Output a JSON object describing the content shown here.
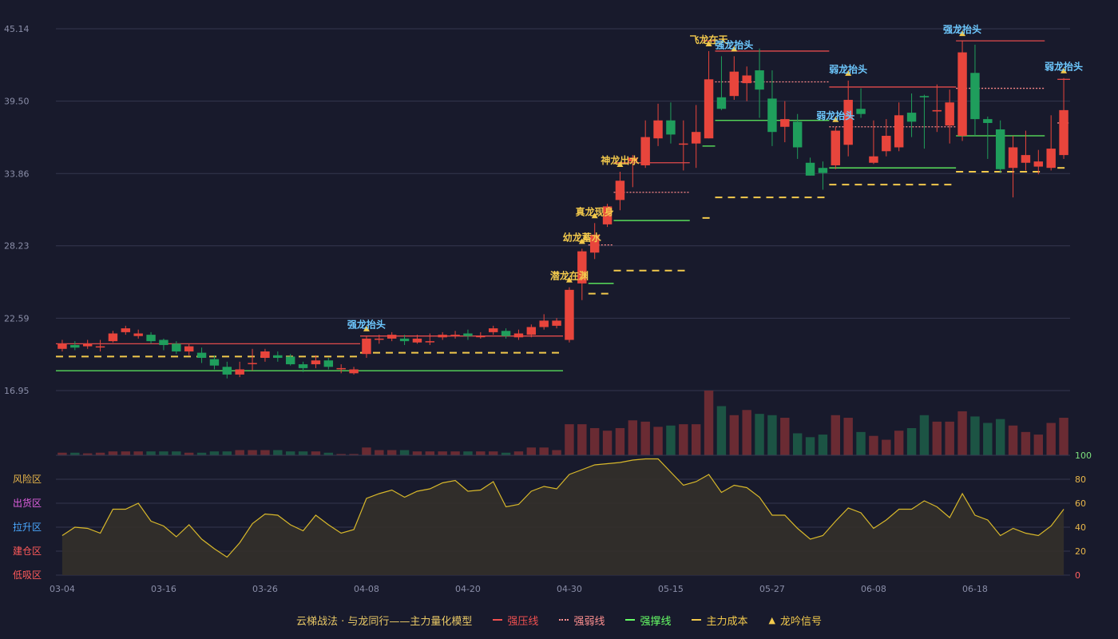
{
  "chart_data": {
    "type": "candlestick",
    "price_axis": {
      "ticks": [
        "45.14",
        "39.50",
        "33.86",
        "28.23",
        "22.59",
        "16.95"
      ],
      "range": [
        16.95,
        45.14
      ]
    },
    "osc_axis": {
      "ticks": [
        "100",
        "80",
        "60",
        "40",
        "20",
        "0"
      ],
      "range": [
        0,
        100
      ]
    },
    "zones": [
      {
        "label": "风险区",
        "color": "#e8b64a"
      },
      {
        "label": "出货区",
        "color": "#e060e0"
      },
      {
        "label": "拉升区",
        "color": "#4aa8ff"
      },
      {
        "label": "建仓区",
        "color": "#ff5a5a"
      },
      {
        "label": "低吸区",
        "color": "#ff5a5a"
      }
    ],
    "x_ticks": [
      {
        "i": 0,
        "label": "03-04"
      },
      {
        "i": 8,
        "label": "03-16"
      },
      {
        "i": 16,
        "label": "03-26"
      },
      {
        "i": 24,
        "label": "04-08"
      },
      {
        "i": 32,
        "label": "04-20"
      },
      {
        "i": 40,
        "label": "04-30"
      },
      {
        "i": 48,
        "label": "05-15"
      },
      {
        "i": 56,
        "label": "05-27"
      },
      {
        "i": 64,
        "label": "06-08"
      },
      {
        "i": 72,
        "label": "06-18"
      }
    ],
    "candles": [
      [
        20.2,
        20.6,
        20.9,
        20.0
      ],
      [
        20.5,
        20.3,
        20.8,
        20.1
      ],
      [
        20.4,
        20.6,
        20.9,
        20.2
      ],
      [
        20.4,
        20.4,
        20.9,
        20.0
      ],
      [
        20.8,
        21.4,
        21.6,
        20.7
      ],
      [
        21.5,
        21.8,
        22.0,
        21.3
      ],
      [
        21.2,
        21.4,
        21.7,
        21.0
      ],
      [
        21.3,
        20.8,
        21.5,
        20.6
      ],
      [
        20.9,
        20.5,
        21.0,
        20.1
      ],
      [
        20.6,
        20.0,
        20.8,
        19.8
      ],
      [
        20.0,
        20.4,
        20.6,
        19.7
      ],
      [
        19.9,
        19.5,
        20.3,
        19.1
      ],
      [
        19.4,
        18.9,
        19.7,
        18.6
      ],
      [
        18.8,
        18.2,
        19.2,
        17.9
      ],
      [
        18.2,
        18.6,
        19.2,
        18.0
      ],
      [
        19.1,
        19.1,
        20.2,
        18.5
      ],
      [
        19.5,
        20.0,
        20.2,
        19.2
      ],
      [
        19.7,
        19.5,
        20.0,
        19.2
      ],
      [
        19.6,
        19.0,
        19.8,
        18.9
      ],
      [
        19.0,
        18.7,
        19.2,
        18.4
      ],
      [
        19.0,
        19.3,
        19.7,
        18.7
      ],
      [
        19.3,
        18.8,
        19.5,
        18.6
      ],
      [
        18.7,
        18.7,
        19.0,
        18.3
      ],
      [
        18.3,
        18.6,
        18.8,
        18.2
      ],
      [
        19.8,
        21.0,
        21.2,
        19.5
      ],
      [
        21.0,
        21.0,
        21.3,
        20.6
      ],
      [
        21.0,
        21.3,
        21.5,
        20.8
      ],
      [
        21.0,
        20.8,
        21.3,
        20.5
      ],
      [
        20.7,
        21.0,
        21.3,
        20.6
      ],
      [
        20.8,
        20.8,
        21.4,
        20.5
      ],
      [
        21.1,
        21.3,
        21.5,
        20.9
      ],
      [
        21.2,
        21.3,
        21.6,
        21.0
      ],
      [
        21.4,
        21.2,
        21.7,
        20.9
      ],
      [
        21.2,
        21.2,
        21.5,
        21.0
      ],
      [
        21.5,
        21.8,
        22.0,
        21.3
      ],
      [
        21.6,
        21.2,
        21.8,
        21.0
      ],
      [
        21.1,
        21.4,
        21.7,
        20.9
      ],
      [
        21.3,
        21.9,
        22.1,
        21.1
      ],
      [
        21.9,
        22.4,
        22.9,
        21.7
      ],
      [
        22.0,
        22.4,
        22.6,
        21.8
      ],
      [
        20.9,
        24.8,
        25.0,
        20.7
      ],
      [
        25.3,
        27.8,
        28.0,
        24.0
      ],
      [
        27.7,
        29.1,
        30.0,
        27.2
      ],
      [
        29.9,
        31.3,
        31.5,
        29.7
      ],
      [
        31.8,
        33.3,
        34.0,
        31.0
      ],
      [
        34.8,
        35.1,
        35.3,
        32.8
      ],
      [
        34.5,
        36.7,
        38.0,
        34.3
      ],
      [
        36.6,
        38.0,
        39.3,
        36.0
      ],
      [
        38.0,
        36.9,
        39.4,
        36.2
      ],
      [
        36.2,
        36.2,
        38.0,
        34.1
      ],
      [
        36.2,
        37.1,
        39.2,
        34.3
      ],
      [
        36.6,
        41.2,
        43.4,
        36.6
      ],
      [
        39.8,
        38.9,
        43.0,
        38.8
      ],
      [
        39.9,
        41.8,
        43.0,
        39.6
      ],
      [
        40.9,
        41.5,
        42.2,
        39.5
      ],
      [
        41.9,
        40.4,
        43.6,
        38.2
      ],
      [
        39.7,
        37.1,
        41.9,
        36.0
      ],
      [
        37.5,
        38.1,
        39.5,
        36.3
      ],
      [
        37.9,
        35.9,
        38.5,
        35.0
      ],
      [
        34.7,
        33.7,
        35.1,
        33.7
      ],
      [
        34.3,
        33.9,
        34.8,
        32.6
      ],
      [
        34.5,
        37.2,
        37.5,
        34.2
      ],
      [
        36.1,
        39.6,
        41.1,
        35.2
      ],
      [
        38.9,
        38.5,
        40.5,
        38.2
      ],
      [
        34.7,
        35.2,
        38.0,
        34.6
      ],
      [
        35.6,
        36.8,
        38.1,
        35.2
      ],
      [
        35.9,
        38.4,
        39.4,
        35.6
      ],
      [
        38.6,
        37.9,
        40.1,
        36.7
      ],
      [
        39.9,
        39.8,
        40.0,
        35.8
      ],
      [
        38.7,
        38.8,
        40.8,
        37.1
      ],
      [
        37.6,
        39.4,
        40.4,
        36.2
      ],
      [
        36.8,
        43.3,
        44.2,
        36.4
      ],
      [
        41.7,
        38.1,
        43.9,
        36.8
      ],
      [
        38.1,
        37.8,
        38.3,
        35.0
      ],
      [
        37.3,
        34.2,
        38.0,
        33.9
      ],
      [
        34.3,
        35.9,
        36.8,
        32.0
      ],
      [
        34.7,
        35.3,
        37.2,
        34.1
      ],
      [
        34.4,
        34.8,
        35.7,
        33.8
      ],
      [
        34.3,
        35.8,
        38.4,
        34.1
      ],
      [
        35.3,
        38.8,
        41.3,
        35.0
      ]
    ],
    "volume": [
      2,
      2,
      1.5,
      2,
      3,
      3,
      3,
      3,
      3,
      3,
      2,
      2,
      3,
      3,
      4,
      4,
      4,
      4,
      3,
      3,
      3,
      2,
      1,
      1,
      6,
      4,
      4,
      4,
      3,
      3,
      3,
      3,
      3,
      3,
      3,
      2,
      3,
      6,
      6,
      4,
      24,
      24,
      21,
      19,
      21,
      27,
      26,
      22,
      23,
      24,
      24,
      50,
      38,
      31,
      35,
      32,
      31,
      29,
      17,
      14,
      16,
      31,
      29,
      18,
      15,
      12,
      19,
      21,
      31,
      26,
      26,
      34,
      30,
      25,
      28,
      23,
      18,
      16,
      25,
      29
    ],
    "oscillator": [
      33,
      40,
      39,
      35,
      55,
      55,
      60,
      45,
      41,
      32,
      42,
      30,
      22,
      15,
      27,
      43,
      51,
      50,
      42,
      37,
      50,
      42,
      35,
      38,
      64,
      68,
      71,
      65,
      70,
      72,
      77,
      79,
      70,
      71,
      78,
      57,
      59,
      70,
      74,
      72,
      84,
      88,
      92,
      93,
      94,
      96,
      97,
      97,
      86,
      75,
      78,
      84,
      69,
      75,
      73,
      65,
      50,
      50,
      39,
      30,
      33,
      45,
      56,
      52,
      39,
      46,
      55,
      55,
      62,
      57,
      48,
      68,
      50,
      46,
      33,
      39,
      35,
      33,
      41,
      55
    ],
    "lines": [
      {
        "kind": "strong_pressure",
        "from": 0,
        "to": 23,
        "price": 20.6
      },
      {
        "kind": "main_cost",
        "from": 0,
        "to": 23,
        "price": 19.6
      },
      {
        "kind": "strong_support",
        "from": 0,
        "to": 23,
        "price": 18.5
      },
      {
        "kind": "strong_pressure",
        "from": 24,
        "to": 39,
        "price": 21.2
      },
      {
        "kind": "main_cost",
        "from": 24,
        "to": 39,
        "price": 19.9
      },
      {
        "kind": "strong_support",
        "from": 24,
        "to": 39,
        "price": 18.5
      },
      {
        "kind": "strong_weak",
        "from": 42,
        "to": 43,
        "price": 28.3
      },
      {
        "kind": "strong_support",
        "from": 42,
        "to": 43,
        "price": 25.3
      },
      {
        "kind": "main_cost",
        "from": 42,
        "to": 43,
        "price": 24.5
      },
      {
        "kind": "strong_pressure",
        "from": 44,
        "to": 49,
        "price": 34.7
      },
      {
        "kind": "strong_weak",
        "from": 44,
        "to": 49,
        "price": 32.4
      },
      {
        "kind": "strong_support",
        "from": 44,
        "to": 49,
        "price": 30.2
      },
      {
        "kind": "main_cost",
        "from": 44,
        "to": 49,
        "price": 26.3
      },
      {
        "kind": "strong_pressure",
        "from": 51,
        "to": 51,
        "price": 44.2
      },
      {
        "kind": "strong_support",
        "from": 51,
        "to": 51,
        "price": 36.0
      },
      {
        "kind": "main_cost",
        "from": 51,
        "to": 51,
        "price": 30.4
      },
      {
        "kind": "strong_pressure",
        "from": 52,
        "to": 60,
        "price": 43.4
      },
      {
        "kind": "strong_weak",
        "from": 52,
        "to": 60,
        "price": 41.0
      },
      {
        "kind": "strong_support",
        "from": 52,
        "to": 60,
        "price": 38.0
      },
      {
        "kind": "main_cost",
        "from": 52,
        "to": 60,
        "price": 32.0
      },
      {
        "kind": "strong_pressure",
        "from": 61,
        "to": 70,
        "price": 40.6
      },
      {
        "kind": "strong_weak",
        "from": 61,
        "to": 70,
        "price": 37.5
      },
      {
        "kind": "strong_support",
        "from": 61,
        "to": 70,
        "price": 34.3
      },
      {
        "kind": "main_cost",
        "from": 61,
        "to": 70,
        "price": 33.0
      },
      {
        "kind": "strong_pressure",
        "from": 71,
        "to": 77,
        "price": 44.2
      },
      {
        "kind": "strong_weak",
        "from": 71,
        "to": 77,
        "price": 40.5
      },
      {
        "kind": "strong_support",
        "from": 71,
        "to": 77,
        "price": 36.8
      },
      {
        "kind": "main_cost",
        "from": 71,
        "to": 77,
        "price": 34.0
      },
      {
        "kind": "strong_pressure",
        "from": 79,
        "to": 79,
        "price": 41.2
      },
      {
        "kind": "strong_weak",
        "from": 79,
        "to": 79,
        "price": 37.8
      },
      {
        "kind": "main_cost",
        "from": 79,
        "to": 79,
        "price": 34.3
      }
    ],
    "signals": [
      {
        "i": 24,
        "text": "强龙抬头",
        "color": "#6ec9ff"
      },
      {
        "i": 40,
        "text": "潜龙在渊",
        "color": "#f2c94c"
      },
      {
        "i": 41,
        "text": "幼龙蓄水",
        "color": "#f2c94c"
      },
      {
        "i": 42,
        "text": "真龙现身",
        "color": "#f2c94c"
      },
      {
        "i": 44,
        "text": "神龙出水",
        "color": "#f2c94c"
      },
      {
        "i": 51,
        "text": "飞龙在天",
        "color": "#f2c94c"
      },
      {
        "i": 53,
        "text": "强龙抬头",
        "color": "#6ec9ff"
      },
      {
        "i": 61,
        "text": "弱龙抬头",
        "color": "#6ec9ff"
      },
      {
        "i": 62,
        "text": "弱龙抬头",
        "color": "#6ec9ff"
      },
      {
        "i": 71,
        "text": "强龙抬头",
        "color": "#6ec9ff"
      },
      {
        "i": 79,
        "text": "弱龙抬头",
        "color": "#6ec9ff"
      }
    ],
    "legend": {
      "title": "云梯战法 · 与龙同行——主力量化模型",
      "items": [
        {
          "label": "强压线",
          "color": "#f05050",
          "kind": "strong_pressure"
        },
        {
          "label": "强弱线",
          "color": "#ff9090",
          "kind": "strong_weak"
        },
        {
          "label": "强撑线",
          "color": "#66ff66",
          "kind": "strong_support"
        },
        {
          "label": "主力成本",
          "color": "#f2c94c",
          "kind": "main_cost"
        },
        {
          "label": "龙吟信号",
          "color": "#f2c94c",
          "kind": "signal"
        }
      ]
    },
    "colors": {
      "up": "#e8453c",
      "down": "#1f9e5c",
      "grid": "#34374e",
      "axis": "#8a8ea8",
      "osc_line": "#d8b82a",
      "osc_fill": "#33302a"
    }
  }
}
